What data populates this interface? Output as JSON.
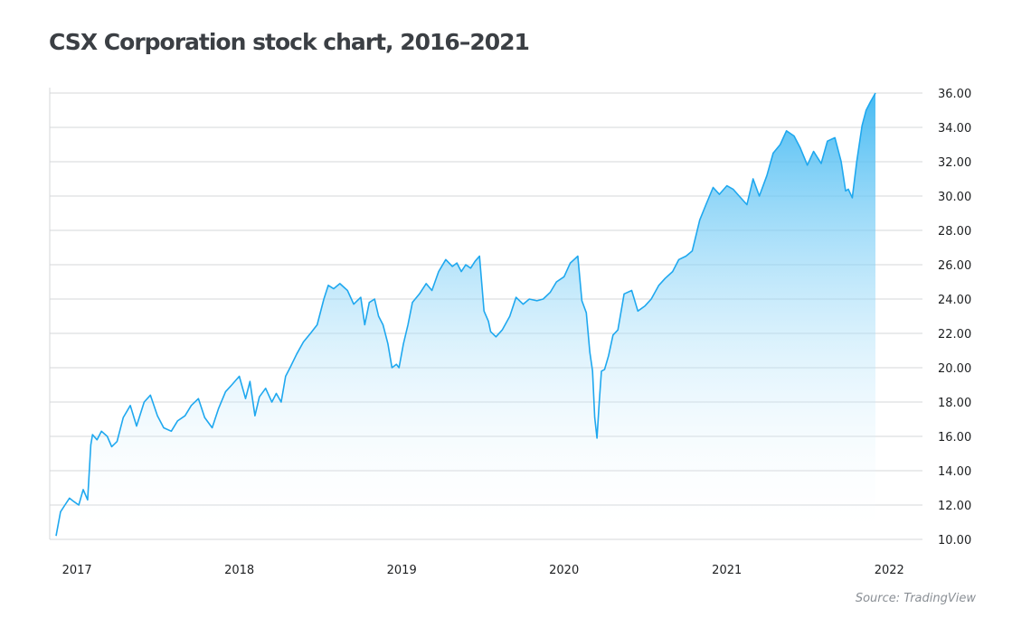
{
  "title": "CSX Corporation stock chart, 2016–2021",
  "source": "Source: TradingView",
  "colors": {
    "line": "#1fa8ef",
    "fill_top": "#3db7f2",
    "fill_bottom": "#ffffff",
    "grid": "#d5d7da"
  },
  "chart_data": {
    "type": "area",
    "title": "CSX Corporation stock chart, 2016–2021",
    "xlabel": "",
    "ylabel": "",
    "grid": true,
    "y_axis_position": "right",
    "ylim": [
      10,
      36
    ],
    "yticks": [
      10,
      12,
      14,
      16,
      18,
      20,
      22,
      24,
      26,
      28,
      30,
      32,
      34,
      36
    ],
    "ytick_labels": [
      "10.00",
      "12.00",
      "14.00",
      "16.00",
      "18.00",
      "20.00",
      "22.00",
      "24.00",
      "26.00",
      "28.00",
      "30.00",
      "32.00",
      "34.00",
      "36.00"
    ],
    "xlim": [
      "2016-11-15",
      "2021-12-01"
    ],
    "xticks": [
      "2017-01-01",
      "2018-01-01",
      "2019-01-01",
      "2020-01-01",
      "2021-01-01",
      "2022-01-01"
    ],
    "xtick_labels": [
      "2017",
      "2018",
      "2019",
      "2020",
      "2021",
      "2022"
    ],
    "series": [
      {
        "dates": [
          "2016-11-15",
          "2016-11-25",
          "2016-12-05",
          "2016-12-15",
          "2016-12-25",
          "2017-01-05",
          "2017-01-15",
          "2017-01-25",
          "2017-02-01",
          "2017-02-05",
          "2017-02-15",
          "2017-02-25",
          "2017-03-10",
          "2017-03-20",
          "2017-04-01",
          "2017-04-15",
          "2017-05-01",
          "2017-05-15",
          "2017-06-01",
          "2017-06-15",
          "2017-07-01",
          "2017-07-15",
          "2017-08-01",
          "2017-08-15",
          "2017-09-01",
          "2017-09-15",
          "2017-10-01",
          "2017-10-15",
          "2017-11-01",
          "2017-11-15",
          "2017-12-01",
          "2017-12-15",
          "2018-01-01",
          "2018-01-15",
          "2018-01-25",
          "2018-02-05",
          "2018-02-15",
          "2018-03-01",
          "2018-03-15",
          "2018-03-25",
          "2018-04-05",
          "2018-04-15",
          "2018-04-25",
          "2018-05-10",
          "2018-05-25",
          "2018-06-10",
          "2018-06-25",
          "2018-07-10",
          "2018-07-20",
          "2018-08-01",
          "2018-08-15",
          "2018-09-01",
          "2018-09-15",
          "2018-10-01",
          "2018-10-10",
          "2018-10-20",
          "2018-11-01",
          "2018-11-10",
          "2018-11-20",
          "2018-12-01",
          "2018-12-10",
          "2018-12-20",
          "2018-12-26",
          "2019-01-05",
          "2019-01-15",
          "2019-01-25",
          "2019-02-10",
          "2019-02-25",
          "2019-03-10",
          "2019-03-25",
          "2019-04-10",
          "2019-04-25",
          "2019-05-05",
          "2019-05-15",
          "2019-05-25",
          "2019-06-05",
          "2019-06-15",
          "2019-06-25",
          "2019-07-05",
          "2019-07-15",
          "2019-07-20",
          "2019-08-01",
          "2019-08-15",
          "2019-09-01",
          "2019-09-15",
          "2019-10-01",
          "2019-10-15",
          "2019-11-01",
          "2019-11-15",
          "2019-12-01",
          "2019-12-15",
          "2020-01-01",
          "2020-01-15",
          "2020-02-01",
          "2020-02-10",
          "2020-02-20",
          "2020-02-28",
          "2020-03-05",
          "2020-03-10",
          "2020-03-15",
          "2020-03-20",
          "2020-03-25",
          "2020-04-01",
          "2020-04-10",
          "2020-04-20",
          "2020-05-01",
          "2020-05-15",
          "2020-06-01",
          "2020-06-15",
          "2020-07-01",
          "2020-07-15",
          "2020-08-01",
          "2020-08-15",
          "2020-09-01",
          "2020-09-15",
          "2020-10-01",
          "2020-10-15",
          "2020-11-01",
          "2020-11-15",
          "2020-12-01",
          "2020-12-15",
          "2021-01-01",
          "2021-01-15",
          "2021-02-01",
          "2021-02-15",
          "2021-03-01",
          "2021-03-15",
          "2021-04-01",
          "2021-04-15",
          "2021-05-01",
          "2021-05-15",
          "2021-06-01",
          "2021-06-15",
          "2021-07-01",
          "2021-07-15",
          "2021-08-01",
          "2021-08-15",
          "2021-09-01",
          "2021-09-15",
          "2021-09-25",
          "2021-10-01",
          "2021-10-10",
          "2021-10-20",
          "2021-11-01",
          "2021-11-10",
          "2021-11-20",
          "2021-12-01"
        ],
        "values": [
          10.2,
          11.6,
          12.0,
          12.4,
          12.2,
          12.0,
          12.9,
          12.3,
          15.5,
          16.1,
          15.8,
          16.3,
          16.0,
          15.4,
          15.7,
          17.1,
          17.8,
          16.6,
          18.0,
          18.4,
          17.2,
          16.5,
          16.3,
          16.9,
          17.2,
          17.8,
          18.2,
          17.1,
          16.5,
          17.6,
          18.6,
          19.0,
          19.5,
          18.2,
          19.2,
          17.2,
          18.3,
          18.8,
          18.0,
          18.5,
          18.0,
          19.5,
          20.0,
          20.8,
          21.5,
          22.0,
          22.5,
          24.0,
          24.8,
          24.6,
          24.9,
          24.5,
          23.7,
          24.1,
          22.5,
          23.8,
          24.0,
          23.0,
          22.5,
          21.4,
          20.0,
          20.2,
          20.0,
          21.4,
          22.5,
          23.8,
          24.3,
          24.9,
          24.5,
          25.6,
          26.3,
          25.9,
          26.1,
          25.6,
          26.0,
          25.8,
          26.2,
          26.5,
          23.3,
          22.7,
          22.1,
          21.8,
          22.2,
          23.0,
          24.1,
          23.7,
          24.0,
          23.9,
          24.0,
          24.4,
          25.0,
          25.3,
          26.1,
          26.5,
          23.9,
          23.2,
          20.9,
          19.8,
          17.1,
          15.9,
          18.0,
          19.8,
          19.9,
          20.7,
          21.9,
          22.2,
          24.3,
          24.5,
          23.3,
          23.6,
          24.0,
          24.8,
          25.2,
          25.6,
          26.3,
          26.5,
          26.8,
          28.6,
          29.5,
          30.5,
          30.1,
          30.6,
          30.4,
          29.9,
          29.5,
          31.0,
          30.0,
          31.2,
          32.5,
          33.0,
          33.8,
          33.5,
          32.8,
          31.8,
          32.6,
          31.9,
          33.2,
          33.4,
          32.0,
          30.3,
          30.4,
          29.9,
          32.0,
          34.1,
          35.0,
          35.5,
          36.0
        ]
      }
    ]
  }
}
